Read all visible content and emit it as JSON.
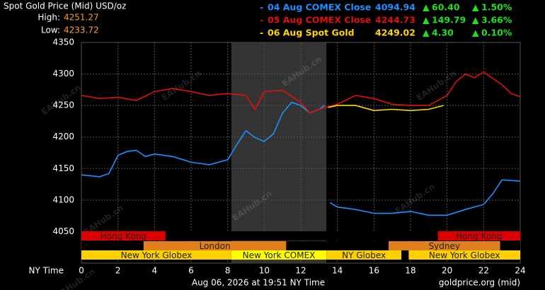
{
  "chart_data": {
    "type": "line",
    "title": "Spot Gold Price (Mid) USD/oz",
    "high_label": "High:",
    "high": "4251.27",
    "low_label": "Low:",
    "low": "4233.72",
    "xlabel": "NY Time",
    "timestamp": "Aug 06, 2026 at 19:51 NY Time",
    "source": "goldprice.org (mid)",
    "watermark": "EAHub.cn",
    "xlim": [
      0,
      24
    ],
    "xticks": [
      0,
      2,
      4,
      6,
      8,
      10,
      12,
      14,
      16,
      18,
      20,
      22,
      24
    ],
    "ylim": [
      4000,
      4350
    ],
    "yticks": [
      4050,
      4100,
      4150,
      4200,
      4250,
      4300,
      4350
    ],
    "grid": true,
    "highlight": {
      "start": 8.2,
      "end": 13.4,
      "color": "#333333"
    },
    "series": [
      {
        "name": "04 Aug COMEX Close",
        "color": "#1e90ff",
        "close": "4094.94",
        "change": "60.40",
        "change_pct": "1.50%",
        "x": [
          0,
          1,
          1.5,
          2,
          2.5,
          3,
          3.5,
          4,
          5,
          6,
          7,
          8,
          8.5,
          9,
          9.5,
          10,
          10.5,
          11,
          11.5,
          12,
          12.5,
          13,
          13.3,
          13.45,
          13.6,
          14,
          15,
          16,
          17,
          18,
          19,
          20,
          21,
          22,
          22.5,
          23,
          24
        ],
        "values": [
          4140,
          4137,
          4142,
          4171,
          4177,
          4179,
          4169,
          4173,
          4169,
          4160,
          4156,
          4164,
          4188,
          4210,
          4199,
          4193,
          4205,
          4238,
          4255,
          4250,
          4238,
          4244,
          4250,
          null,
          4096,
          4089,
          4085,
          4079,
          4079,
          4082,
          4076,
          4076,
          4085,
          4093,
          4110,
          4132,
          4130
        ]
      },
      {
        "name": "05 Aug COMEX Close",
        "color": "#e01010",
        "close": "4244.73",
        "change": "149.79",
        "change_pct": "3.66%",
        "x": [
          0,
          1,
          2,
          3,
          4,
          5,
          6,
          7,
          8,
          9,
          9.5,
          10,
          11,
          12,
          12.5,
          13,
          14,
          15,
          16,
          17,
          18,
          19,
          20,
          20.5,
          21,
          21.5,
          22,
          23,
          23.5,
          24
        ],
        "values": [
          4266,
          4261,
          4263,
          4258,
          4272,
          4277,
          4272,
          4266,
          4269,
          4266,
          4244,
          4272,
          4274,
          4255,
          4238,
          4244,
          4252,
          4266,
          4261,
          4252,
          4250,
          4250,
          4266,
          4288,
          4300,
          4294,
          4303,
          4283,
          4269,
          4264
        ]
      },
      {
        "name": "06 Aug Spot Gold",
        "color": "#ffd700",
        "close": "4249.02",
        "change": "4.30",
        "change_pct": "0.10%",
        "x": [
          13.5,
          14,
          15,
          16,
          17,
          18,
          19,
          19.8
        ],
        "values": [
          4247,
          4250,
          4250,
          4242,
          4244,
          4242,
          4244,
          4250
        ]
      }
    ],
    "session_rows": [
      [
        {
          "name": "Hong Kong",
          "start": 0,
          "end": 4.6,
          "color": "#dd0000"
        },
        {
          "name": "Hong Kong",
          "start": 19.5,
          "end": 24,
          "color": "#dd0000"
        }
      ],
      [
        {
          "name": "London",
          "start": 3.4,
          "end": 11.2,
          "color": "#e0801c"
        },
        {
          "name": "Sydney",
          "start": 16.8,
          "end": 22.9,
          "color": "#e0801c"
        }
      ],
      [
        {
          "name": "New York Globex",
          "start": 0,
          "end": 8.2,
          "color": "#ffd000"
        },
        {
          "name": "New York COMEX",
          "start": 8.2,
          "end": 13.4,
          "color": "#ffff00"
        },
        {
          "name": "NY Globex",
          "start": 13.4,
          "end": 17.5,
          "color": "#ffd000"
        },
        {
          "name": "New York Globex",
          "start": 17.9,
          "end": 24,
          "color": "#ffd000"
        }
      ]
    ]
  }
}
